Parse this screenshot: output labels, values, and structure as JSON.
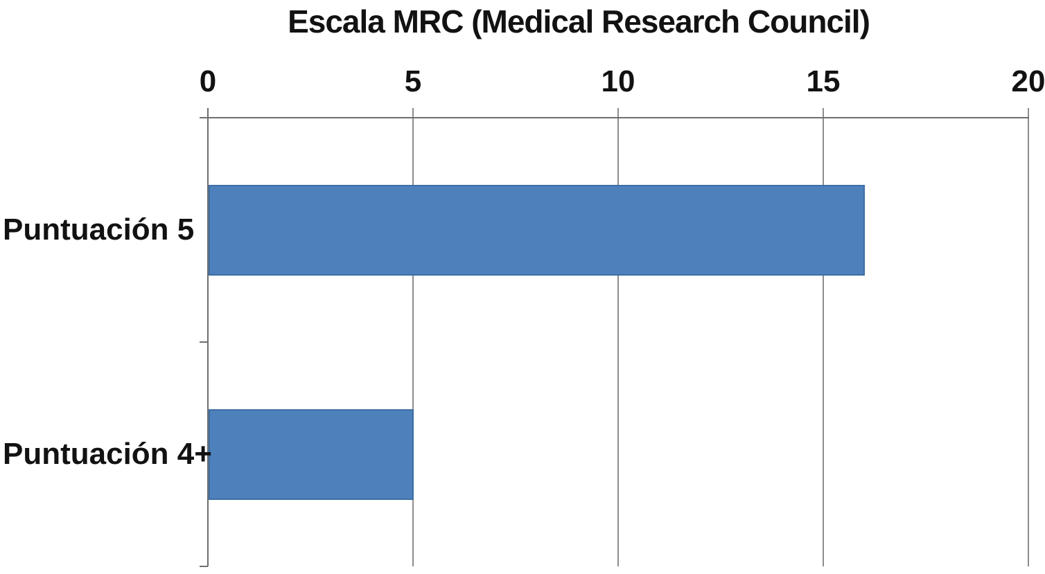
{
  "chart_data": {
    "type": "bar",
    "orientation": "horizontal",
    "title": "Escala MRC (Medical Research Council)",
    "categories": [
      "Puntuación 5",
      "Puntuación 4+"
    ],
    "values": [
      16,
      5
    ],
    "xlim": [
      0,
      20
    ],
    "x_ticks": [
      0,
      5,
      10,
      15,
      20
    ],
    "grid": true,
    "legend": false,
    "axis_position": "top",
    "colors": {
      "bar_fill": "#4E80BC",
      "bar_border": "#3E6FA5",
      "axis_line": "#6E6E6E",
      "gridline": "#8C8C8C",
      "text": "#121212",
      "background": "#FFFFFF"
    }
  }
}
